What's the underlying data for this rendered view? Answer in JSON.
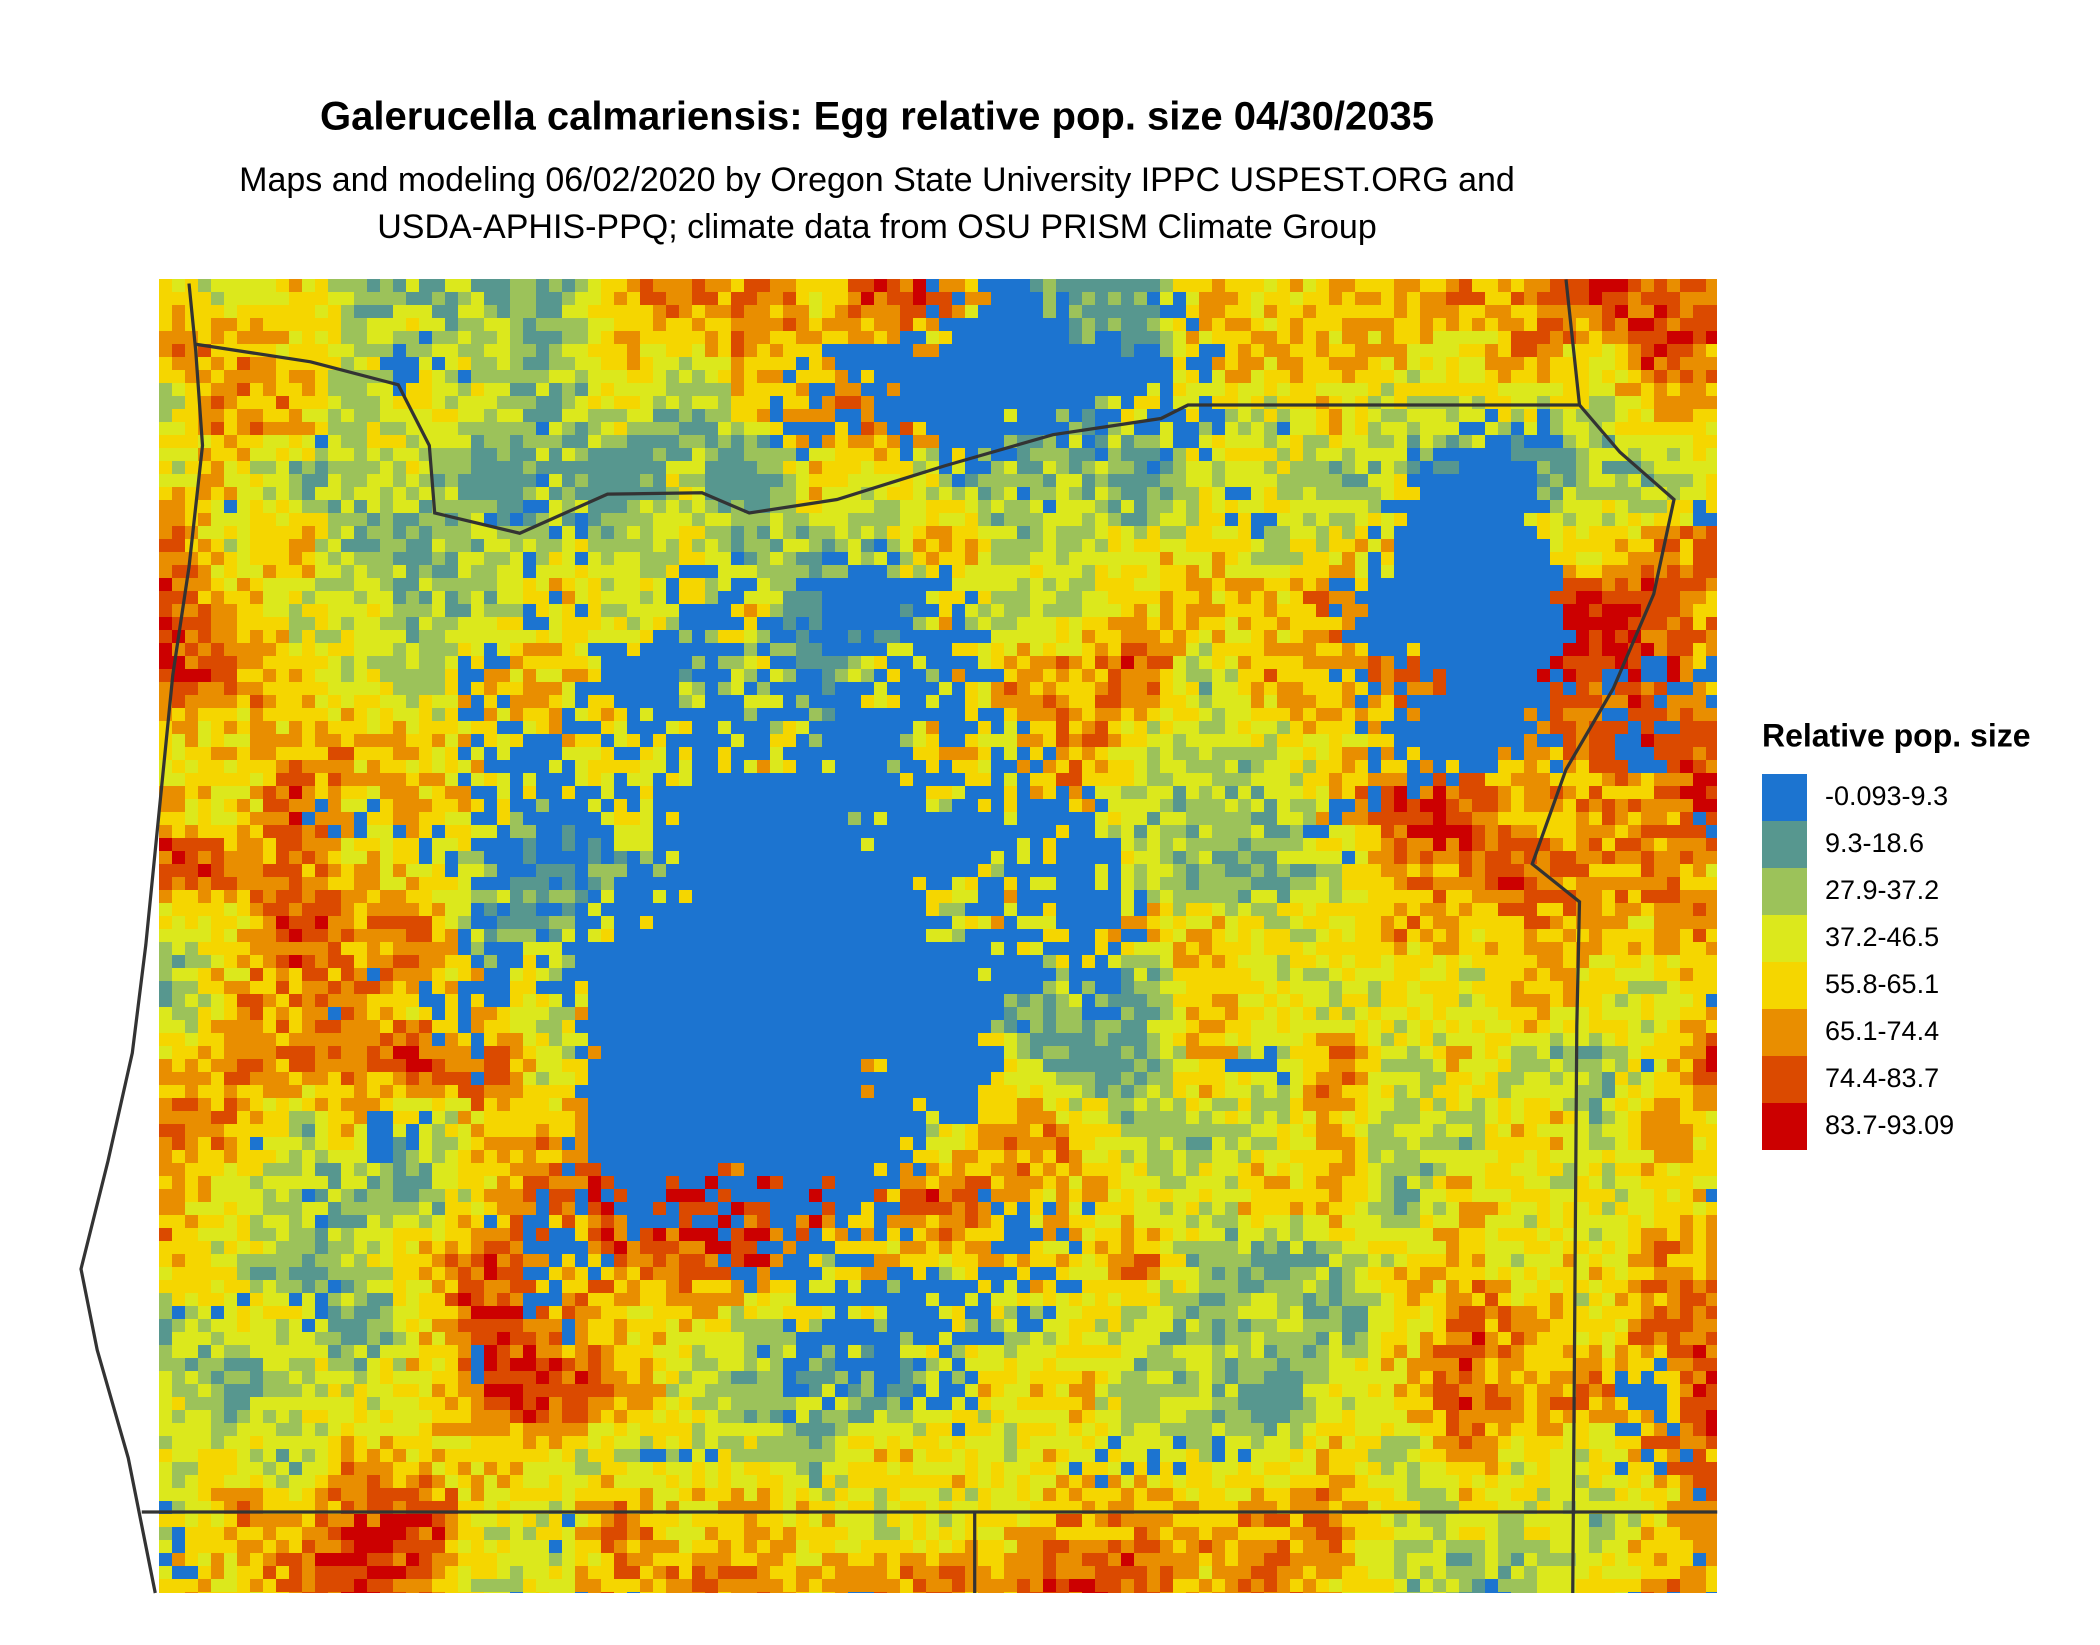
{
  "title": "Galerucella calmariensis: Egg relative pop. size 04/30/2035",
  "subtitle": [
    "Maps and modeling 06/02/2020 by Oregon State University IPPC USPEST.ORG and",
    "USDA-APHIS-PPQ; climate data from OSU PRISM Climate Group"
  ],
  "legend": {
    "title": "Relative pop. size",
    "items": [
      {
        "label": "-0.093-9.3",
        "color": "#1c74d0"
      },
      {
        "label": "9.3-18.6",
        "color": "#57978f"
      },
      {
        "label": "27.9-37.2",
        "color": "#9cc25a"
      },
      {
        "label": "37.2-46.5",
        "color": "#dce81c"
      },
      {
        "label": "55.8-65.1",
        "color": "#f5d600"
      },
      {
        "label": "65.1-74.4",
        "color": "#e98e00"
      },
      {
        "label": "74.4-83.7",
        "color": "#db4a00"
      },
      {
        "label": "83.7-93.09",
        "color": "#cc0000"
      }
    ]
  }
}
